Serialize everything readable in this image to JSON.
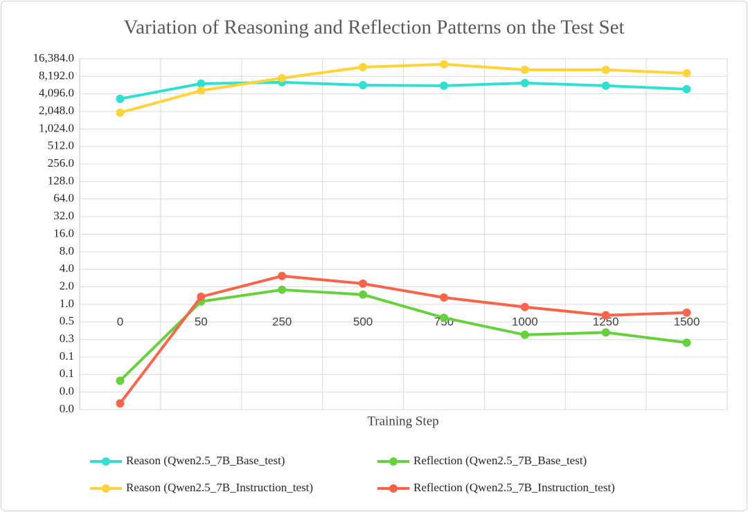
{
  "chart_data": {
    "type": "line",
    "title": "Variation of Reasoning and Reflection Patterns on the Test Set",
    "x_label": "Training Step",
    "categories": [
      "0",
      "50",
      "250",
      "500",
      "750",
      "1000",
      "1250",
      "1500"
    ],
    "y_scale": "log",
    "log_base": 2,
    "grid": true,
    "ylim": [
      0.015625,
      16384
    ],
    "yticks": [
      {
        "value": 16384,
        "label": "16,384.0"
      },
      {
        "value": 8192,
        "label": "8,192.0"
      },
      {
        "value": 4096,
        "label": "4,096.0"
      },
      {
        "value": 2048,
        "label": "2,048.0"
      },
      {
        "value": 1024,
        "label": "1,024.0"
      },
      {
        "value": 512,
        "label": "512.0"
      },
      {
        "value": 256,
        "label": "256.0"
      },
      {
        "value": 128,
        "label": "128.0"
      },
      {
        "value": 64,
        "label": "64.0"
      },
      {
        "value": 32,
        "label": "32.0"
      },
      {
        "value": 16,
        "label": "16.0"
      },
      {
        "value": 8,
        "label": "8.0"
      },
      {
        "value": 4,
        "label": "4.0"
      },
      {
        "value": 2,
        "label": "2.0"
      },
      {
        "value": 1,
        "label": "1.0"
      },
      {
        "value": 0.5,
        "label": "0.5"
      },
      {
        "value": 0.25,
        "label": "0.3"
      },
      {
        "value": 0.125,
        "label": "0.1"
      },
      {
        "value": 0.0625,
        "label": "0.1"
      },
      {
        "value": 0.03125,
        "label": "0.0"
      },
      {
        "value": 0.015625,
        "label": "0.0"
      }
    ],
    "legend_position": "bottom",
    "series": [
      {
        "name": "Reason (Qwen2.5_7B_Base_test)",
        "color": "#2fe0d2",
        "values": [
          3370,
          6140,
          6480,
          5800,
          5660,
          6300,
          5660,
          4930
        ]
      },
      {
        "name": "Reflection (Qwen2.5_7B_Base_test)",
        "color": "#66d13c",
        "values": [
          0.049,
          1.12,
          1.78,
          1.47,
          0.59,
          0.3,
          0.33,
          0.22
        ]
      },
      {
        "name": "Reason (Qwen2.5_7B_Instruction_test)",
        "color": "#fdd43a",
        "values": [
          1950,
          4670,
          7640,
          11800,
          13200,
          10600,
          10600,
          9270
        ]
      },
      {
        "name": "Reflection (Qwen2.5_7B_Instruction_test)",
        "color": "#f8654a",
        "values": [
          0.02,
          1.35,
          3.07,
          2.27,
          1.31,
          0.9,
          0.65,
          0.72
        ]
      }
    ]
  }
}
